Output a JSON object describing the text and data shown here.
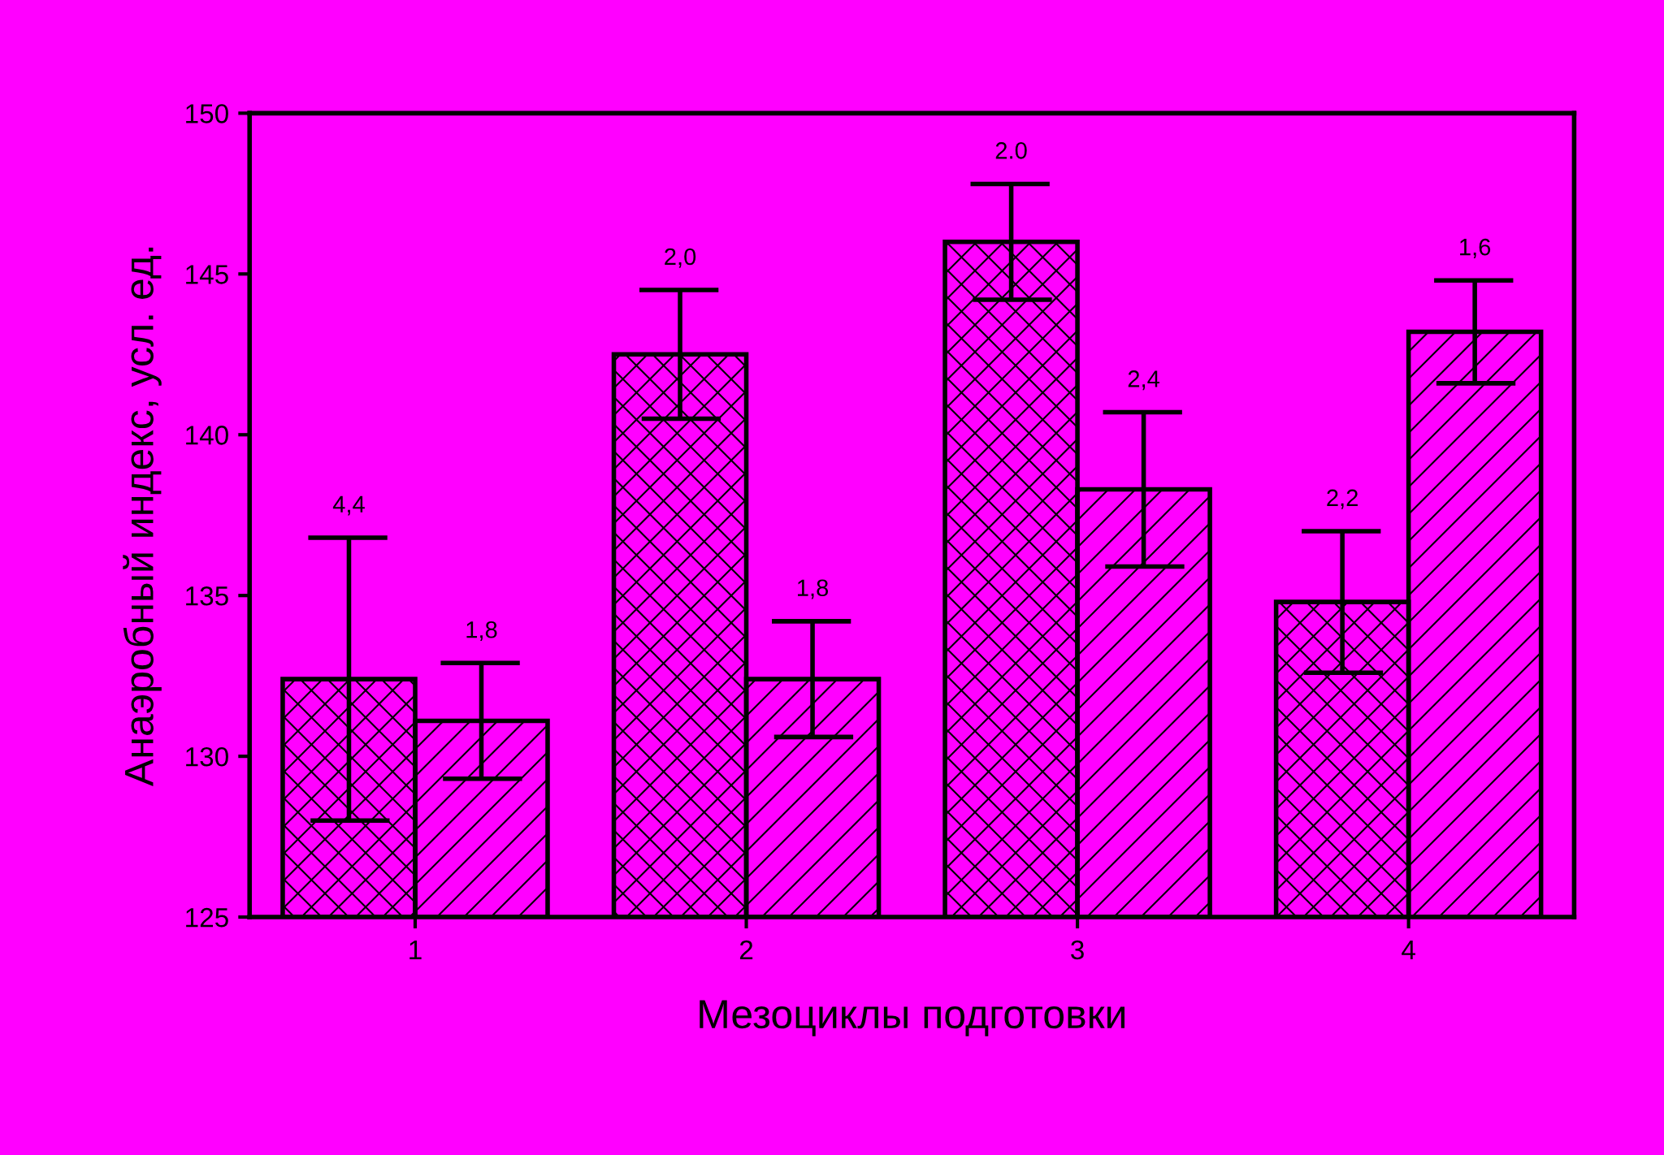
{
  "chart_data": {
    "type": "bar",
    "xlabel": "Мезоциклы подготовки",
    "ylabel": "Анаэробный индекс, усл. ед.",
    "categories": [
      "1",
      "2",
      "3",
      "4"
    ],
    "series": [
      {
        "color": "#000000",
        "values": [
          132.4,
          142.5,
          146.0,
          134.8
        ],
        "errors": [
          4.4,
          2.0,
          1.8,
          2.2
        ]
      },
      {
        "color": "#000000",
        "values": [
          131.1,
          132.4,
          138.3,
          143.2
        ],
        "errors": [
          1.8,
          1.8,
          2.4,
          1.6
        ]
      }
    ],
    "annotations": [
      "4,4",
      "1,8",
      "2,0",
      "1,8",
      "2.0",
      "2,4",
      "2,2",
      "1,6"
    ],
    "ylim": [
      125,
      150
    ],
    "yticks": [
      125,
      130,
      135,
      140,
      145,
      150
    ],
    "grid": false,
    "legend": false
  }
}
